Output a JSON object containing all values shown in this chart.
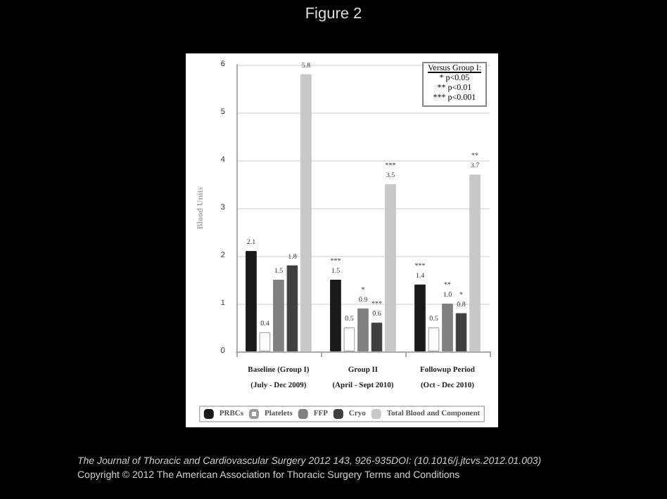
{
  "chart_data": {
    "type": "bar",
    "title": "Figure 2",
    "ylabel": "Blood Units",
    "categories": [
      "Baseline (Group I)\n(July - Dec 2009)",
      "Group II\n(April - Sept 2010)",
      "Followup Period\n(Oct - Dec 2010)"
    ],
    "series": [
      {
        "name": "PRBCs",
        "color": "#1a1a1a",
        "values": [
          2.1,
          1.5,
          1.4
        ],
        "value_labels": [
          "2.1",
          "***\n1.5",
          "***\n1.4"
        ]
      },
      {
        "name": "Platelets",
        "color": "#ffffff",
        "values": [
          0.4,
          0.5,
          0.5
        ],
        "value_labels": [
          "0.4",
          "0.5",
          "0.5"
        ]
      },
      {
        "name": "FFP",
        "color": "#808080",
        "values": [
          1.5,
          0.9,
          1.0
        ],
        "value_labels": [
          "1.5",
          "*\n0.9",
          "**\n1.0"
        ]
      },
      {
        "name": "Cryo",
        "color": "#404040",
        "values": [
          1.8,
          0.6,
          0.8
        ],
        "value_labels": [
          "1.8",
          "***\n0.6",
          "*\n0.8"
        ]
      },
      {
        "name": "Total Blood and Component",
        "color": "#c8c8c8",
        "values": [
          5.8,
          3.5,
          3.7
        ],
        "value_labels": [
          "5.8",
          "***\n3.5",
          "**\n3.7"
        ]
      }
    ],
    "ylim": [
      0,
      6
    ],
    "yticks": [
      0,
      1,
      2,
      3,
      4,
      5,
      6
    ],
    "grid": "y",
    "legend": "bottom",
    "annotations": [
      "Versus Group I:",
      "* p<0.05",
      "** p<0.01",
      "*** p<0.001",
      "The Journal of Thoracic and Cardiovascular Surgery 2012 143, 926-935DOI: (10.1016/j.jtcvs.2012.01.003)",
      "Copyright © 2012 The American Association for Thoracic Surgery Terms and Conditions"
    ]
  }
}
